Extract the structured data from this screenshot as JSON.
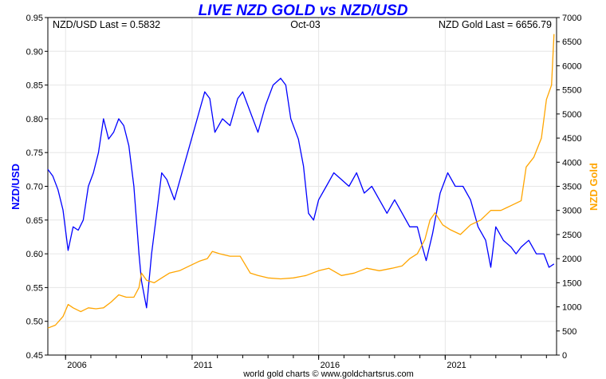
{
  "chart_data": {
    "type": "line",
    "title": "LIVE NZD GOLD vs NZD/USD",
    "title_color": "#0000ff",
    "left_readout": "NZD/USD Last = 0.5832",
    "center_readout": "Oct-03",
    "right_readout": "NZD Gold Last = 6656.79",
    "footer": "world gold charts © www.goldchartsrus.com",
    "x_axis": {
      "range": [
        2005.3,
        2025.4
      ],
      "ticks": [
        2006,
        2011,
        2016,
        2021
      ],
      "tick_labels": [
        "2006",
        "2011",
        "2016",
        "2021"
      ],
      "minor_ticks": [
        2006,
        2007,
        2008,
        2009,
        2010,
        2011,
        2012,
        2013,
        2014,
        2015,
        2016,
        2017,
        2018,
        2019,
        2020,
        2021,
        2022,
        2023,
        2024,
        2025
      ]
    },
    "y_left": {
      "label": "NZD/USD",
      "color": "#0000ff",
      "range": [
        0.45,
        0.95
      ],
      "ticks": [
        0.45,
        0.5,
        0.55,
        0.6,
        0.65,
        0.7,
        0.75,
        0.8,
        0.85,
        0.9,
        0.95
      ],
      "tick_labels": [
        "0.45",
        "0.50",
        "0.55",
        "0.60",
        "0.65",
        "0.70",
        "0.75",
        "0.80",
        "0.85",
        "0.90",
        "0.95"
      ]
    },
    "y_right": {
      "label": "NZD Gold",
      "color": "#ffa500",
      "range": [
        0,
        7000
      ],
      "ticks": [
        0,
        500,
        1000,
        1500,
        2000,
        2500,
        3000,
        3500,
        4000,
        4500,
        5000,
        5500,
        6000,
        6500,
        7000
      ],
      "tick_labels": [
        "0",
        "500",
        "1000",
        "1500",
        "2000",
        "2500",
        "3000",
        "3500",
        "4000",
        "4500",
        "5000",
        "5500",
        "6000",
        "6500",
        "7000"
      ]
    },
    "series": [
      {
        "name": "NZD/USD",
        "axis": "left",
        "color": "#0000ff",
        "x": [
          2005.3,
          2005.5,
          2005.7,
          2005.9,
          2006.1,
          2006.3,
          2006.5,
          2006.7,
          2006.9,
          2007.1,
          2007.3,
          2007.5,
          2007.7,
          2007.9,
          2008.1,
          2008.3,
          2008.5,
          2008.7,
          2008.9,
          2009.0,
          2009.2,
          2009.4,
          2009.6,
          2009.8,
          2010.0,
          2010.3,
          2010.6,
          2010.9,
          2011.2,
          2011.5,
          2011.7,
          2011.9,
          2012.2,
          2012.5,
          2012.8,
          2013.0,
          2013.3,
          2013.6,
          2013.9,
          2014.2,
          2014.5,
          2014.7,
          2014.9,
          2015.2,
          2015.4,
          2015.6,
          2015.8,
          2016.0,
          2016.3,
          2016.6,
          2016.9,
          2017.2,
          2017.5,
          2017.8,
          2018.1,
          2018.4,
          2018.7,
          2019.0,
          2019.3,
          2019.6,
          2019.9,
          2020.1,
          2020.25,
          2020.5,
          2020.8,
          2021.1,
          2021.4,
          2021.7,
          2022.0,
          2022.3,
          2022.6,
          2022.8,
          2023.0,
          2023.3,
          2023.6,
          2023.8,
          2024.0,
          2024.3,
          2024.6,
          2024.9,
          2025.1,
          2025.3
        ],
        "values": [
          0.725,
          0.715,
          0.695,
          0.665,
          0.605,
          0.64,
          0.635,
          0.65,
          0.7,
          0.72,
          0.75,
          0.8,
          0.77,
          0.78,
          0.8,
          0.79,
          0.76,
          0.7,
          0.6,
          0.56,
          0.52,
          0.6,
          0.66,
          0.72,
          0.71,
          0.68,
          0.72,
          0.76,
          0.8,
          0.84,
          0.83,
          0.78,
          0.8,
          0.79,
          0.83,
          0.84,
          0.81,
          0.78,
          0.82,
          0.85,
          0.86,
          0.85,
          0.8,
          0.77,
          0.73,
          0.66,
          0.65,
          0.68,
          0.7,
          0.72,
          0.71,
          0.7,
          0.72,
          0.69,
          0.7,
          0.68,
          0.66,
          0.68,
          0.66,
          0.64,
          0.64,
          0.61,
          0.59,
          0.63,
          0.69,
          0.72,
          0.7,
          0.7,
          0.68,
          0.64,
          0.62,
          0.58,
          0.64,
          0.62,
          0.61,
          0.6,
          0.61,
          0.62,
          0.6,
          0.6,
          0.58,
          0.585
        ]
      },
      {
        "name": "NZD Gold",
        "axis": "right",
        "color": "#ffa500",
        "x": [
          2005.3,
          2005.6,
          2005.9,
          2006.1,
          2006.3,
          2006.6,
          2006.9,
          2007.2,
          2007.5,
          2007.8,
          2008.1,
          2008.4,
          2008.7,
          2008.9,
          2009.0,
          2009.2,
          2009.5,
          2009.8,
          2010.1,
          2010.5,
          2010.9,
          2011.3,
          2011.6,
          2011.8,
          2012.1,
          2012.5,
          2012.9,
          2013.3,
          2013.6,
          2014.0,
          2014.5,
          2015.0,
          2015.5,
          2016.0,
          2016.4,
          2016.9,
          2017.4,
          2017.9,
          2018.4,
          2018.9,
          2019.3,
          2019.6,
          2019.9,
          2020.2,
          2020.4,
          2020.6,
          2020.9,
          2021.2,
          2021.6,
          2022.0,
          2022.4,
          2022.8,
          2023.2,
          2023.6,
          2024.0,
          2024.2,
          2024.5,
          2024.8,
          2025.0,
          2025.2,
          2025.3
        ],
        "values": [
          560,
          620,
          800,
          1050,
          980,
          900,
          980,
          960,
          980,
          1100,
          1250,
          1200,
          1200,
          1400,
          1700,
          1550,
          1500,
          1600,
          1700,
          1750,
          1850,
          1950,
          2000,
          2150,
          2100,
          2050,
          2050,
          1700,
          1650,
          1600,
          1580,
          1600,
          1650,
          1750,
          1800,
          1650,
          1700,
          1800,
          1750,
          1800,
          1850,
          2000,
          2100,
          2400,
          2800,
          2950,
          2700,
          2600,
          2500,
          2700,
          2800,
          3000,
          3000,
          3100,
          3200,
          3900,
          4100,
          4500,
          5300,
          5600,
          6657
        ]
      }
    ]
  }
}
